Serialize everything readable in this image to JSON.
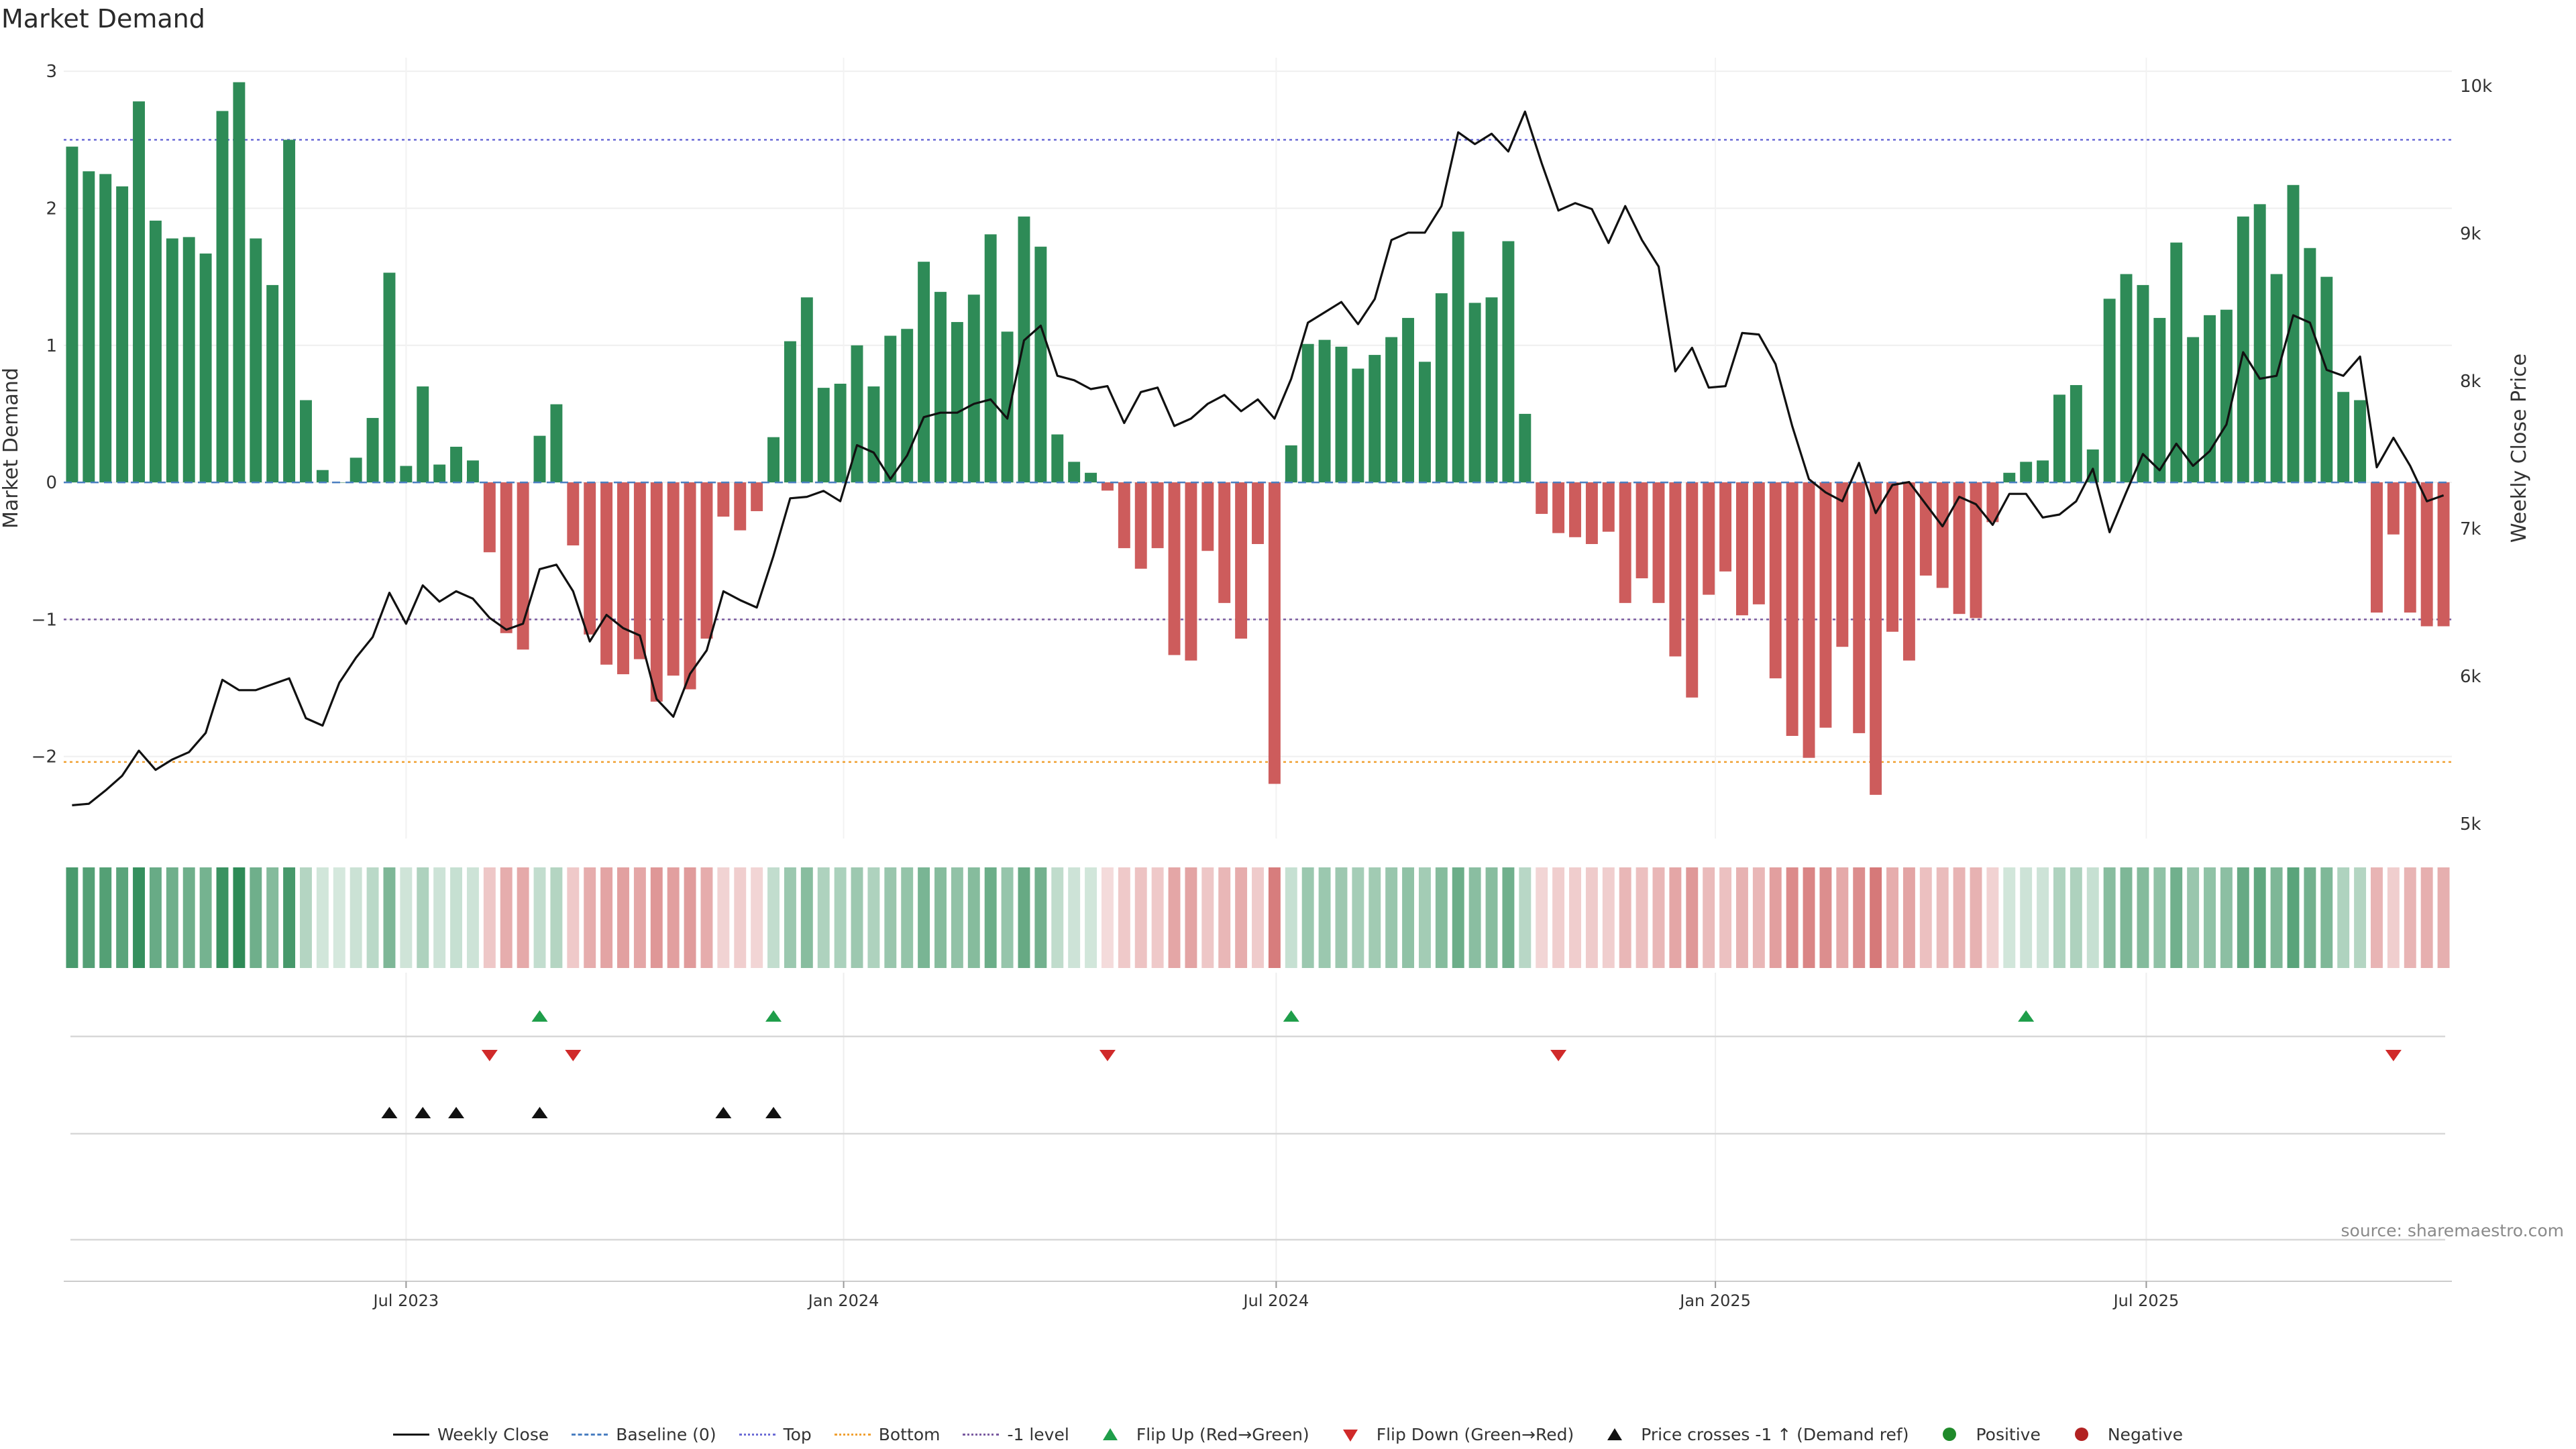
{
  "title": "Market Demand",
  "source": "source: sharemaestro.com",
  "colors": {
    "positive_bar": "#2e8b57",
    "negative_bar": "#cd5c5c",
    "price_line": "#111111",
    "top_line": "#6b6bd6",
    "bottom_line": "#f0a030",
    "minus_one_line": "#7a5aa0",
    "baseline": "#4a7fc1",
    "flip_up": "#1f9e4a",
    "flip_down": "#d02a2a",
    "cross_marker": "#111111",
    "positive_dot": "#1f8a2a",
    "negative_dot": "#b22222"
  },
  "chart_data": {
    "type": "bar",
    "ylabel": "Market Demand",
    "y2label": "Weekly Close Price",
    "ylim": [
      -2.55,
      3.05
    ],
    "y2lim": [
      4950,
      10150
    ],
    "y_ticks": [
      3,
      2,
      1,
      0,
      -1,
      -2
    ],
    "y_tick_labels": [
      "3",
      "2",
      "1",
      "0",
      "−1",
      "−2"
    ],
    "y2_ticks": [
      10000,
      9000,
      8000,
      7000,
      6000,
      5000
    ],
    "y2_tick_labels": [
      "10k",
      "9k",
      "8k",
      "7k",
      "6k",
      "5k"
    ],
    "x_tick_labels": [
      "Jul 2023",
      "Jan 2024",
      "Jul 2024",
      "Jan 2025",
      "Jul 2025"
    ],
    "x_tick_weeks": [
      20.5,
      46.7,
      72.6,
      98.9,
      124.7
    ],
    "reference_levels": {
      "top": 2.5,
      "bottom": -2.04,
      "minus_one": -1.0,
      "baseline": 0
    },
    "demand": [
      2.45,
      2.27,
      2.25,
      2.16,
      2.78,
      1.91,
      1.78,
      1.79,
      1.67,
      2.71,
      2.92,
      1.78,
      1.44,
      2.5,
      0.6,
      0.09,
      0.0,
      0.18,
      0.47,
      1.53,
      0.12,
      0.7,
      0.13,
      0.26,
      0.16,
      -0.51,
      -1.1,
      -1.22,
      0.34,
      0.57,
      -0.46,
      -1.11,
      -1.33,
      -1.4,
      -1.29,
      -1.6,
      -1.41,
      -1.51,
      -1.14,
      -0.25,
      -0.35,
      -0.21,
      0.33,
      1.03,
      1.35,
      0.69,
      0.72,
      1.0,
      0.7,
      1.07,
      1.12,
      1.61,
      1.39,
      1.17,
      1.37,
      1.81,
      1.1,
      1.94,
      1.72,
      0.35,
      0.15,
      0.07,
      -0.06,
      -0.48,
      -0.63,
      -0.48,
      -1.26,
      -1.3,
      -0.5,
      -0.88,
      -1.14,
      -0.45,
      -2.2,
      0.27,
      1.01,
      1.04,
      0.99,
      0.83,
      0.93,
      1.06,
      1.2,
      0.88,
      1.38,
      1.83,
      1.31,
      1.35,
      1.76,
      0.5,
      -0.23,
      -0.37,
      -0.4,
      -0.45,
      -0.36,
      -0.88,
      -0.7,
      -0.88,
      -1.27,
      -1.57,
      -0.82,
      -0.65,
      -0.97,
      -0.89,
      -1.43,
      -1.85,
      -2.01,
      -1.79,
      -1.2,
      -1.83,
      -2.28,
      -1.09,
      -1.3,
      -0.68,
      -0.77,
      -0.96,
      -0.99,
      -0.29,
      0.07,
      0.15,
      0.16,
      0.64,
      0.71,
      0.24,
      1.34,
      1.52,
      1.44,
      1.2,
      1.75,
      1.06,
      1.22,
      1.26,
      1.94,
      2.03,
      1.52,
      2.17,
      1.71,
      1.5,
      0.66,
      0.6,
      -0.95,
      -0.38,
      -0.95,
      -1.05,
      -1.05
    ],
    "weekly_close": [
      5130,
      5140,
      5230,
      5330,
      5500,
      5370,
      5440,
      5490,
      5620,
      5980,
      5910,
      5910,
      5950,
      5990,
      5720,
      5670,
      5960,
      6130,
      6270,
      6570,
      6360,
      6620,
      6510,
      6580,
      6530,
      6400,
      6320,
      6360,
      6730,
      6760,
      6580,
      6240,
      6420,
      6330,
      6280,
      5850,
      5730,
      6020,
      6180,
      6580,
      6520,
      6470,
      6820,
      7210,
      7220,
      7260,
      7190,
      7570,
      7520,
      7340,
      7500,
      7760,
      7790,
      7790,
      7850,
      7880,
      7750,
      8280,
      8380,
      8040,
      8010,
      7950,
      7970,
      7720,
      7930,
      7960,
      7700,
      7750,
      7850,
      7910,
      7800,
      7880,
      7750,
      8020,
      8400,
      8470,
      8540,
      8390,
      8560,
      8960,
      9010,
      9010,
      9190,
      9690,
      9610,
      9680,
      9560,
      9830,
      9480,
      9160,
      9210,
      9170,
      8940,
      9190,
      8960,
      8780,
      8070,
      8230,
      7960,
      7970,
      8330,
      8320,
      8120,
      7700,
      7340,
      7250,
      7190,
      7450,
      7110,
      7300,
      7320,
      7170,
      7020,
      7220,
      7170,
      7030,
      7240,
      7240,
      7080,
      7100,
      7190,
      7410,
      6980,
      7250,
      7510,
      7400,
      7580,
      7430,
      7530,
      7710,
      8200,
      8020,
      8040,
      8450,
      8400,
      8080,
      8040,
      8170,
      7420,
      7620,
      7430,
      7190,
      7230
    ],
    "flip_up_weeks": [
      28,
      42,
      73,
      117
    ],
    "flip_down_weeks": [
      25,
      30,
      62,
      89,
      139
    ],
    "price_cross_weeks": [
      19,
      21,
      23,
      28,
      39,
      42
    ],
    "legend": [
      {
        "label": "Weekly Close",
        "symbol": "solid-line"
      },
      {
        "label": "Baseline (0)",
        "symbol": "dash-line"
      },
      {
        "label": "Top",
        "symbol": "dot-line-blue"
      },
      {
        "label": "Bottom",
        "symbol": "dot-line-orange"
      },
      {
        "label": "-1 level",
        "symbol": "dot-line-purple"
      },
      {
        "label": "Flip Up (Red→Green)",
        "symbol": "triangle-up"
      },
      {
        "label": "Flip Down (Green→Red)",
        "symbol": "triangle-down"
      },
      {
        "label": "Price crosses -1 ↑ (Demand ref)",
        "symbol": "triangle-up-black"
      },
      {
        "label": "Positive",
        "symbol": "dot-green"
      },
      {
        "label": "Negative",
        "symbol": "dot-red"
      }
    ]
  }
}
